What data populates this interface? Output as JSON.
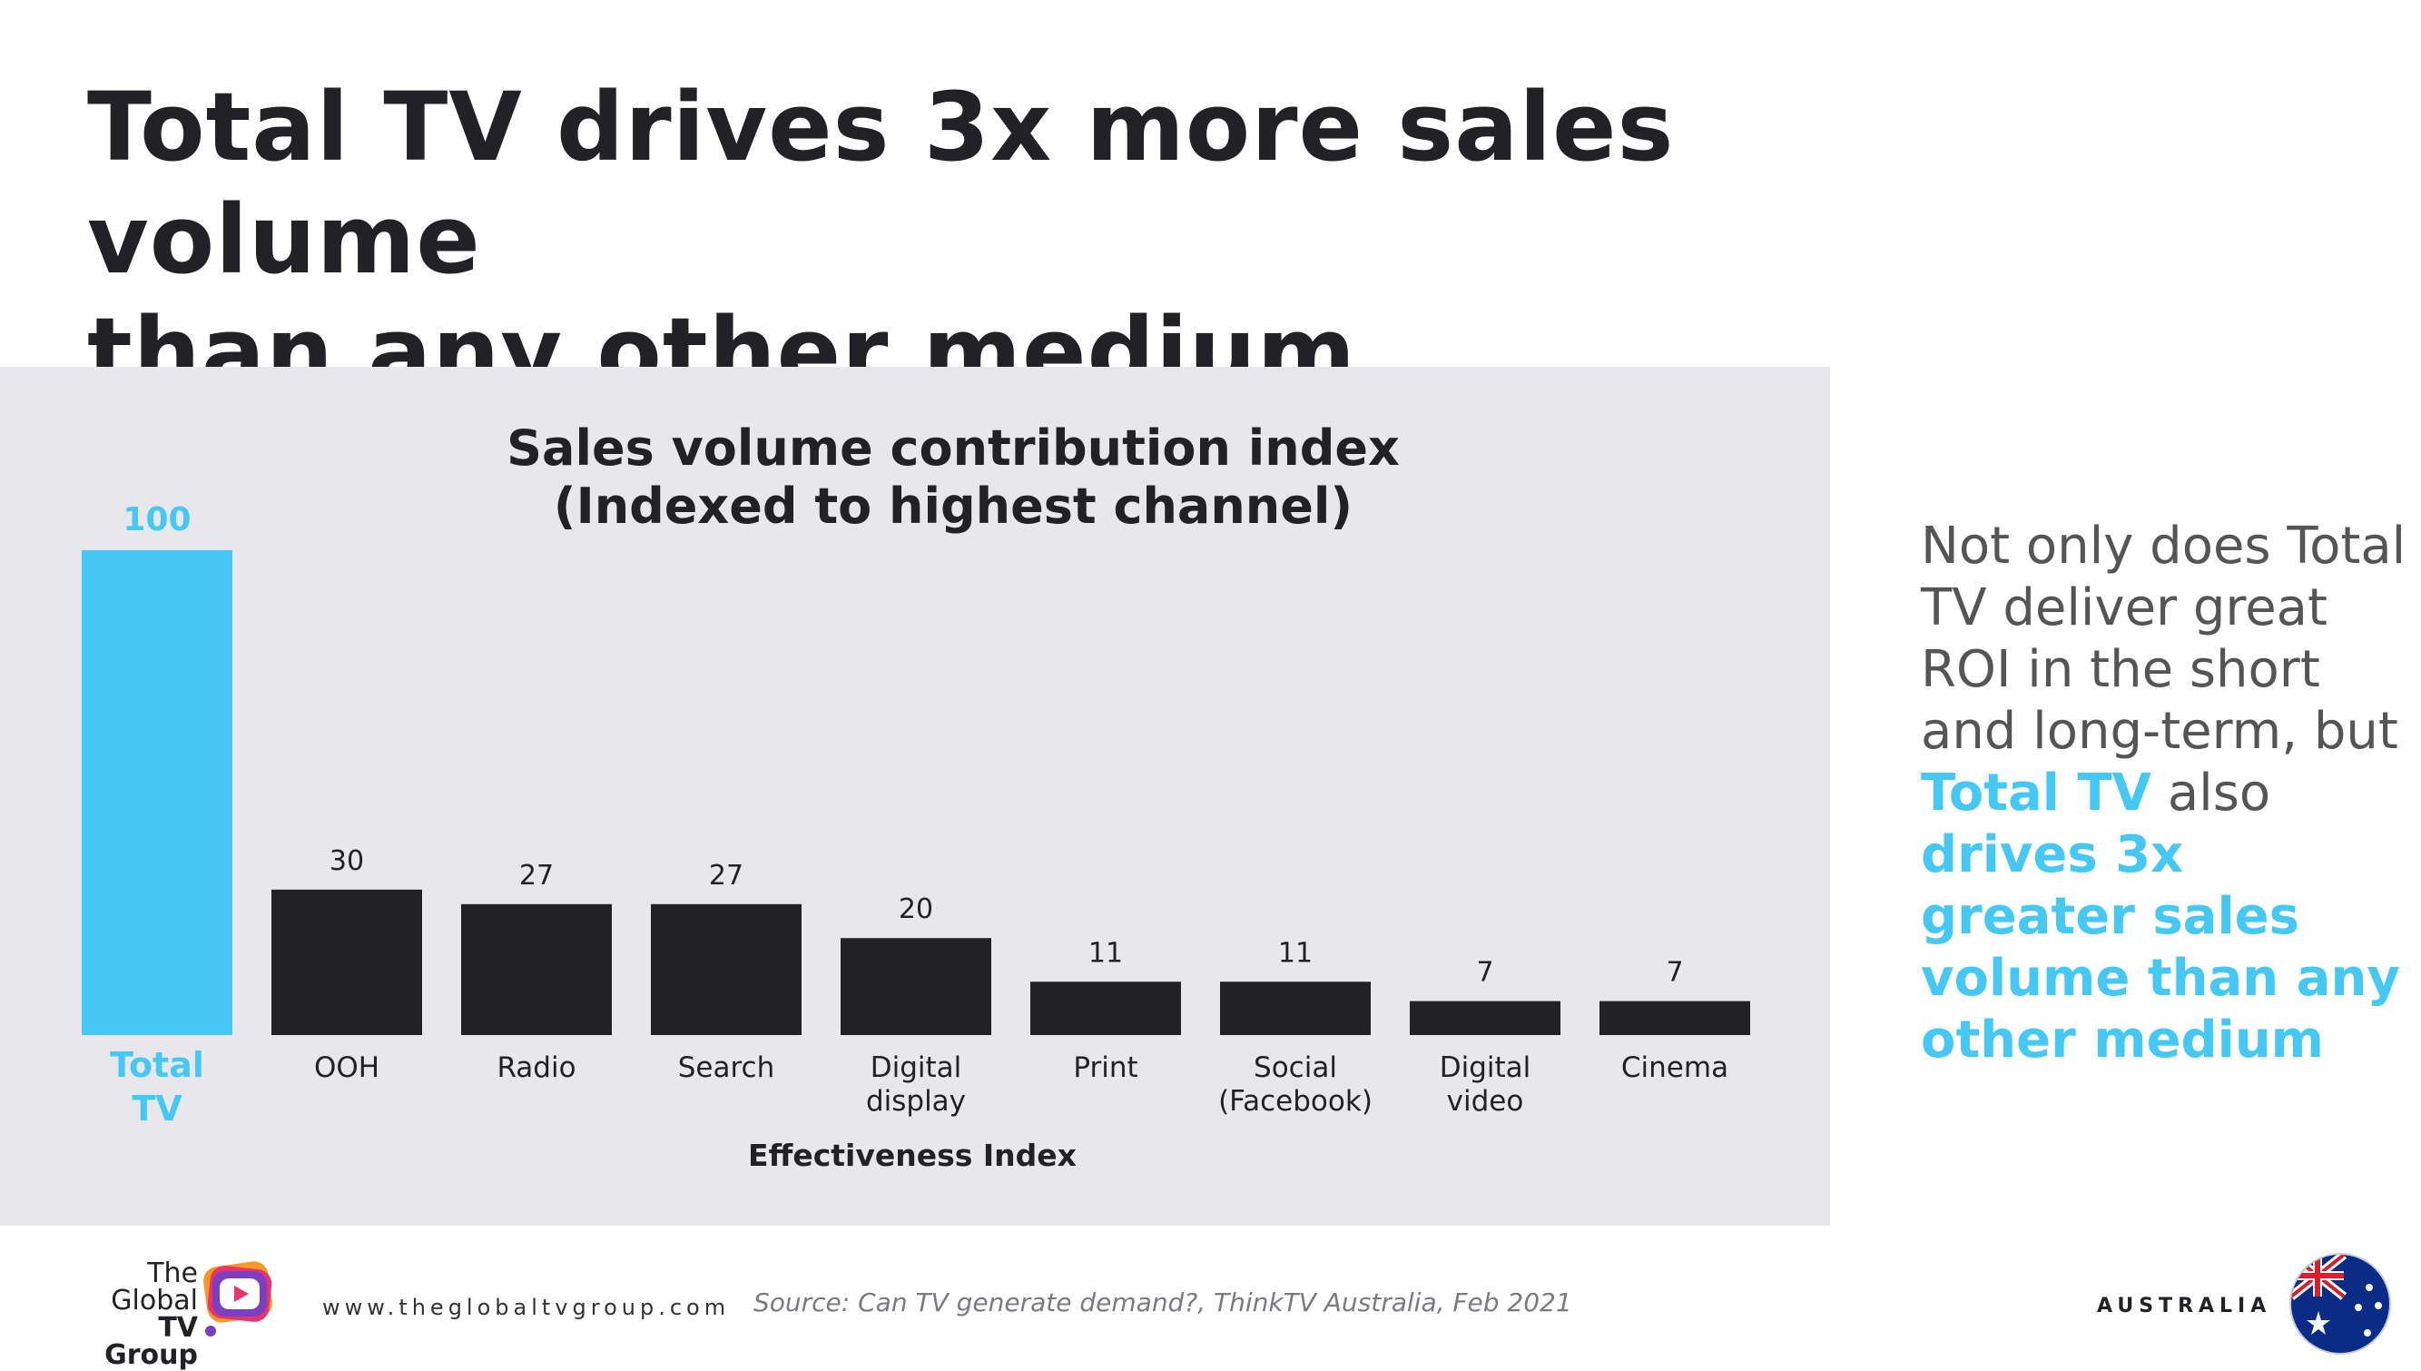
{
  "headline": {
    "line1": "Total TV drives 3x more sales volume",
    "line2": "than any other medium"
  },
  "chart_title": {
    "line1": "Sales volume contribution index",
    "line2": "(Indexed to highest channel)"
  },
  "chart_data": {
    "type": "bar",
    "title": "Sales volume contribution index (Indexed to highest channel)",
    "xlabel": "Effectiveness Index",
    "ylabel": "",
    "ylim": [
      0,
      100
    ],
    "categories": [
      [
        "Total",
        "TV"
      ],
      [
        "OOH"
      ],
      [
        "Radio"
      ],
      [
        "Search"
      ],
      [
        "Digital",
        "display"
      ],
      [
        "Print"
      ],
      [
        "Social",
        "(Facebook)"
      ],
      [
        "Digital",
        "video"
      ],
      [
        "Cinema"
      ]
    ],
    "values": [
      100,
      30,
      27,
      27,
      20,
      11,
      11,
      7,
      7
    ],
    "highlight_index": 0,
    "colors": {
      "highlight": "#45c8f4",
      "default": "#222226",
      "label": "#222226"
    }
  },
  "side_text": {
    "part1": "Not only does Total TV deliver great ROI in the short and long-term, but",
    "highlight1": "Total TV",
    "part2": " also ",
    "highlight2": "drives 3x greater sales volume than any other medium"
  },
  "footer": {
    "logo_line1": "The",
    "logo_line2": "Global",
    "logo_line3": "TV Group",
    "website": "www.theglobaltvgroup.com",
    "source": "Source: Can TV generate demand?, ThinkTV Australia, Feb 2021",
    "country": "AUSTRALIA"
  },
  "colors": {
    "accent": "#45c8f4",
    "panel": "#e7e7ec",
    "text": "#222226"
  }
}
